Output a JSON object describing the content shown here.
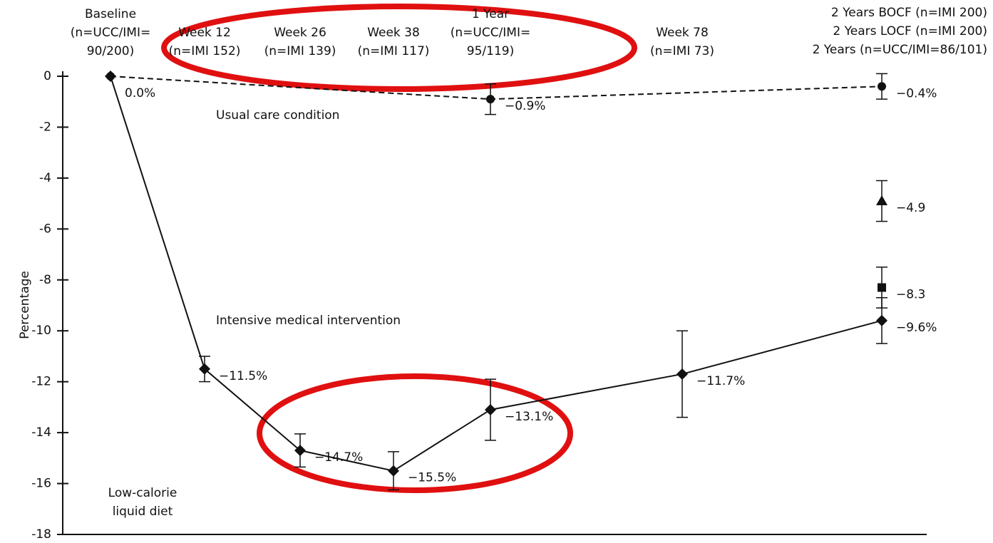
{
  "chart_data": {
    "type": "line",
    "y_label": "Percentage",
    "categories": [
      [
        "Baseline",
        "(n=UCC/IMI=",
        "90/200)"
      ],
      [
        "Week 12",
        "(n=IMI 152)"
      ],
      [
        "Week 26",
        "(n=IMI 139)"
      ],
      [
        "Week 38",
        "(n=IMI 117)"
      ],
      [
        "1 Year",
        "(n=UCC/IMI=",
        "95/119)"
      ],
      [
        "Week 78",
        "(n=IMI 73)"
      ],
      [
        "2 Years BOCF (n=IMI 200)",
        "2 Years LOCF (n=IMI 200)",
        "2 Years (n=UCC/IMI=86/101)"
      ]
    ],
    "ylim": [
      -18,
      0
    ],
    "yticks": [
      0,
      -2,
      -4,
      -6,
      -8,
      -10,
      -12,
      -14,
      -16,
      -18
    ],
    "series": [
      {
        "name": "Usual care condition",
        "color": "#111111",
        "marker": "circle",
        "dashed": true,
        "values": [
          0.0,
          null,
          null,
          null,
          -0.9,
          null,
          -0.4
        ],
        "errors": [
          null,
          null,
          null,
          null,
          0.6,
          null,
          0.5
        ],
        "value_labels": [
          "0.0%",
          null,
          null,
          null,
          "−0.9%",
          null,
          "−0.4%"
        ]
      },
      {
        "name": "Intensive medical intervention",
        "color": "#111111",
        "marker": "diamond",
        "dashed": false,
        "values": [
          0.0,
          -11.5,
          -14.7,
          -15.5,
          -13.1,
          -11.7,
          -9.6
        ],
        "errors": [
          null,
          0.5,
          0.65,
          0.75,
          1.2,
          1.7,
          0.9
        ],
        "value_labels": [
          null,
          "−11.5%",
          "−14.7%",
          "−15.5%",
          "−13.1%",
          "−11.7%",
          "−9.6%"
        ]
      },
      {
        "color": "#111111",
        "marker": "triangle",
        "dashed": false,
        "values": [
          null,
          null,
          null,
          null,
          null,
          null,
          -4.9
        ],
        "errors": [
          null,
          null,
          null,
          null,
          null,
          null,
          0.8
        ],
        "value_labels": [
          null,
          null,
          null,
          null,
          null,
          null,
          "−4.9"
        ]
      },
      {
        "color": "#111111",
        "marker": "square",
        "dashed": false,
        "values": [
          null,
          null,
          null,
          null,
          null,
          null,
          -8.3
        ],
        "errors": [
          null,
          null,
          null,
          null,
          null,
          null,
          0.8
        ],
        "value_labels": [
          null,
          null,
          null,
          null,
          null,
          null,
          "−8.3"
        ]
      }
    ],
    "annotations": [
      [
        "Low-calorie",
        "liquid diet"
      ]
    ]
  }
}
